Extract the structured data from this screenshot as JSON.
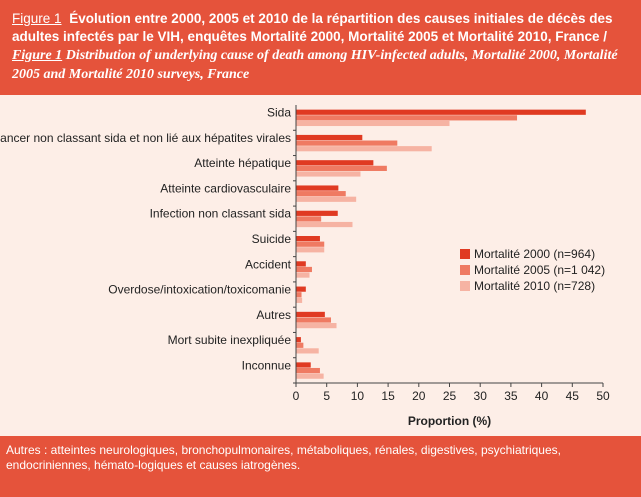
{
  "header": {
    "fig_label_fr": "Figure 1",
    "title_fr": "Évolution entre 2000, 2005 et 2010 de la répartition des causes initiales de décès des adultes infectés par le VIH, enquêtes Mortalité 2000, Mortalité 2005 et Mortalité 2010, France /",
    "fig_label_en": "Figure 1",
    "title_en": "Distribution of underlying cause of death among HIV-infected adults, Mortalité 2000, Mortalité 2005 and Mortalité 2010 surveys, France"
  },
  "footer": {
    "note": "Autres : atteintes neurologiques, bronchopulmonaires, métaboliques, rénales, digestives, psychiatriques, endocriniennes, hémato-logiques et causes iatrogènes."
  },
  "colors": {
    "header_bg": "#e5533b",
    "chart_bg": "#fdeee7",
    "series": [
      "#e03a22",
      "#ef7a62",
      "#f6b3a3"
    ]
  },
  "chart_data": {
    "type": "bar",
    "orientation": "horizontal",
    "categories": [
      "Sida",
      "Cancer non classant sida et non lié aux hépatites virales",
      "Atteinte hépatique",
      "Atteinte cardiovasculaire",
      "Infection non classant sida",
      "Suicide",
      "Accident",
      "Overdose/intoxication/toxicomanie",
      "Autres",
      "Mort subite inexpliquée",
      "Inconnue"
    ],
    "series": [
      {
        "name": "Mortalité 2000 (n=964)",
        "values": [
          47.2,
          10.8,
          12.6,
          6.9,
          6.8,
          3.9,
          1.6,
          1.6,
          4.7,
          0.8,
          2.4
        ]
      },
      {
        "name": "Mortalité 2005 (n=1 042)",
        "values": [
          36.0,
          16.5,
          14.8,
          8.1,
          4.1,
          4.6,
          2.6,
          0.9,
          5.7,
          1.2,
          3.9
        ]
      },
      {
        "name": "Mortalité 2010 (n=728)",
        "values": [
          25.0,
          22.1,
          10.5,
          9.8,
          9.2,
          4.6,
          2.2,
          1.0,
          6.6,
          3.7,
          4.5
        ]
      }
    ],
    "xlabel": "Proportion (%)",
    "xlim": [
      0,
      50
    ],
    "xticks": [
      0,
      5,
      10,
      15,
      20,
      25,
      30,
      35,
      40,
      45,
      50
    ],
    "grid": false,
    "legend_position": "right"
  }
}
